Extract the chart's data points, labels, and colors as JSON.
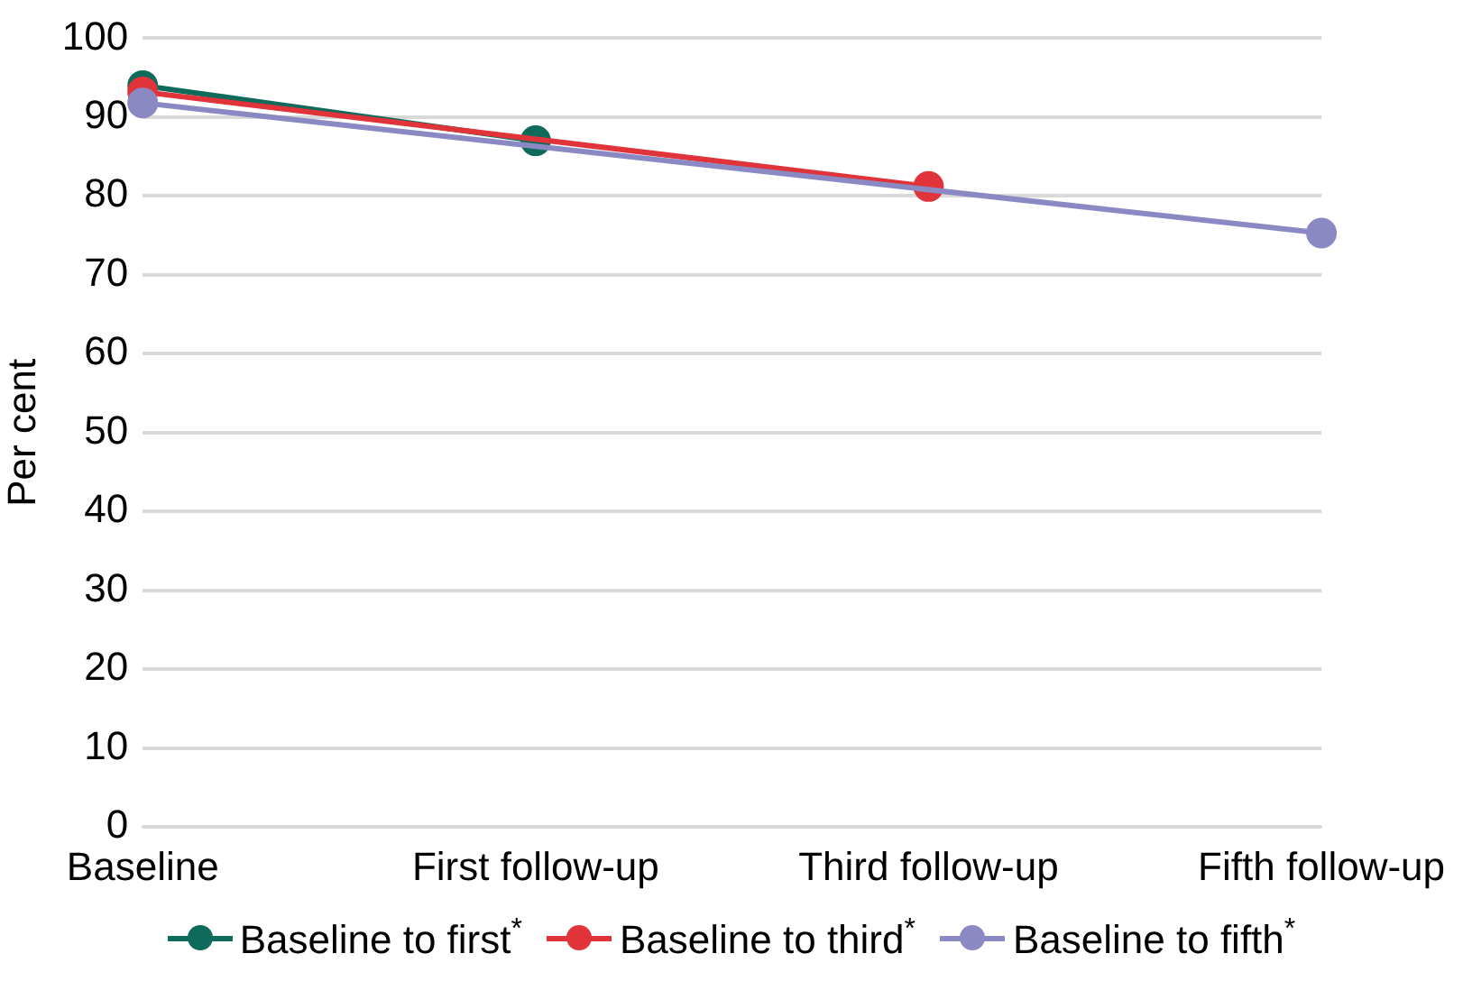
{
  "chart_data": {
    "type": "line",
    "ylabel": "Per cent",
    "categories": [
      "Baseline",
      "First follow-up",
      "Third follow-up",
      "Fifth follow-up"
    ],
    "ylim": [
      0,
      100
    ],
    "yticks": [
      0,
      10,
      20,
      30,
      40,
      50,
      60,
      70,
      80,
      90,
      100
    ],
    "grid": "y",
    "legend": "bottom",
    "marker": "circle",
    "line_style": "solid",
    "series": [
      {
        "name": "Baseline to first$^{*}$",
        "color": "#0e6b5c",
        "values": [
          94,
          87,
          null,
          null
        ]
      },
      {
        "name": "Baseline to third$^{*}$",
        "color": "#e0343a",
        "values": [
          93.2,
          null,
          81.2,
          null
        ]
      },
      {
        "name": "Baseline to fifth$^{*}$",
        "color": "#8b89c4",
        "values": [
          91.8,
          null,
          null,
          75.3
        ]
      }
    ]
  }
}
